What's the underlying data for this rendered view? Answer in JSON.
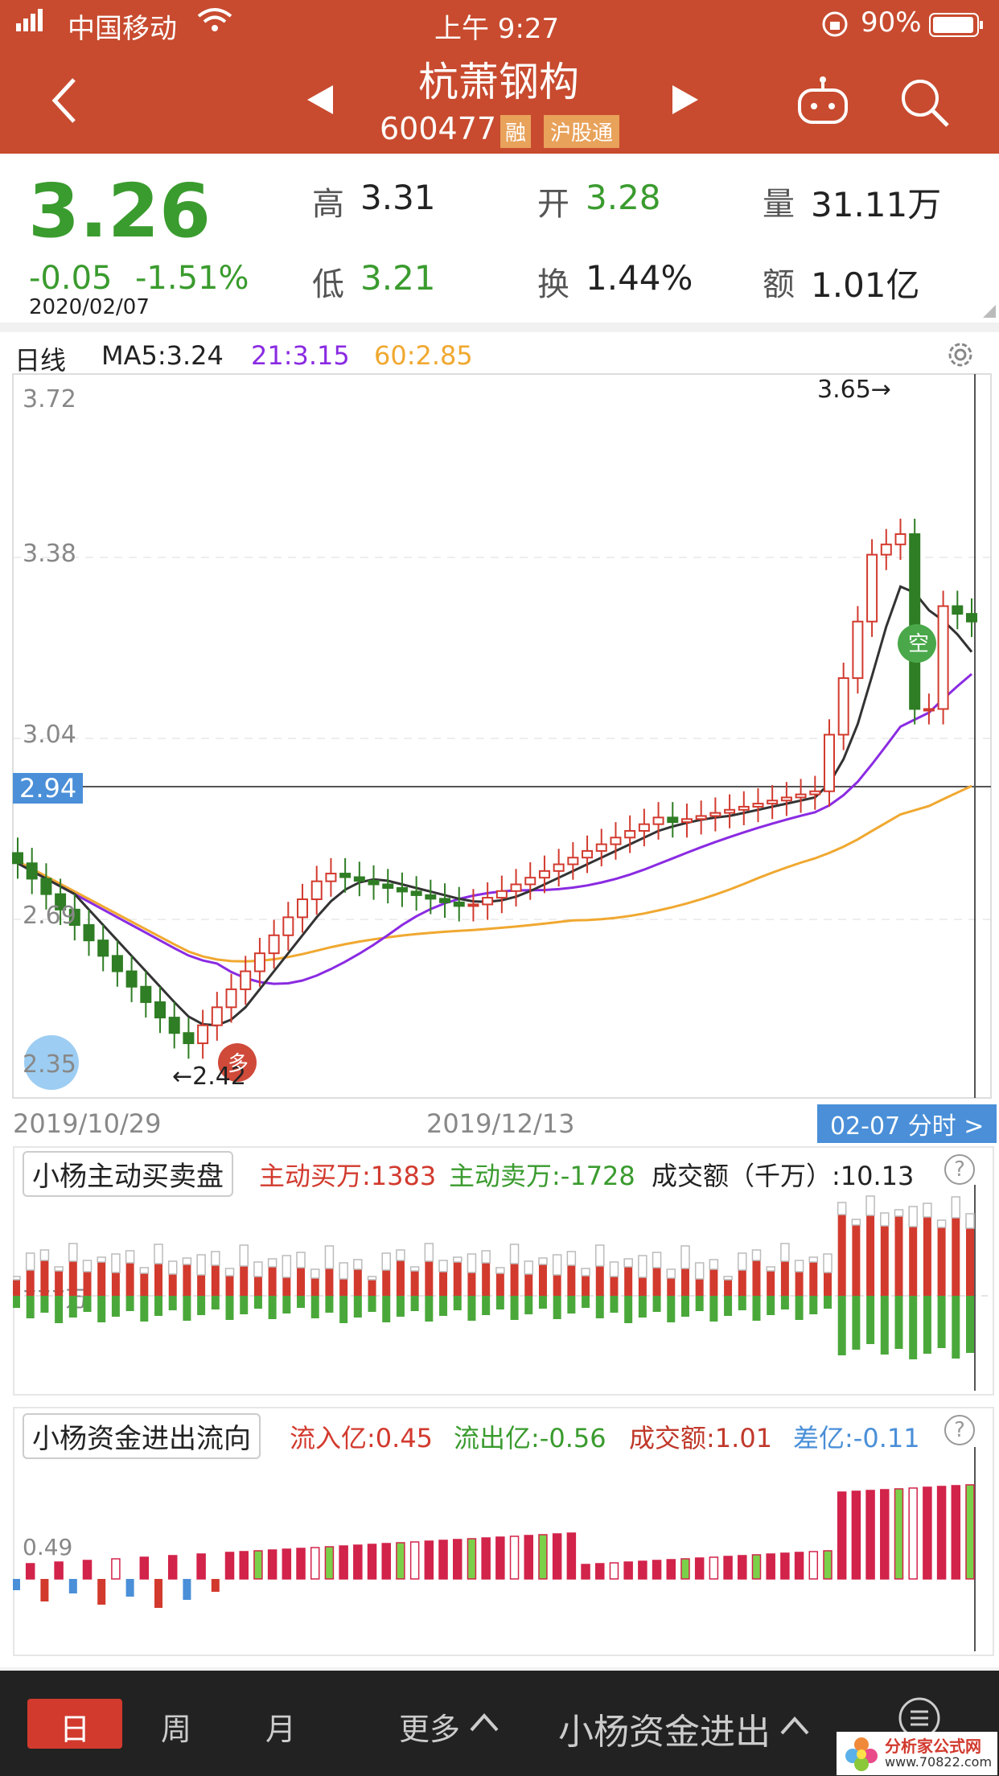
{
  "status": {
    "carrier": "中国移动",
    "time": "上午 9:27",
    "battery": "90%"
  },
  "header": {
    "name": "杭萧钢构",
    "code": "600477",
    "tag1": "融",
    "tag2": "沪股通"
  },
  "quote": {
    "price": "3.26",
    "change": "-0.05",
    "pct": "-1.51%",
    "date": "2020/02/07",
    "high_label": "高",
    "high": "3.31",
    "open_label": "开",
    "open": "3.28",
    "vol_label": "量",
    "vol": "31.11万",
    "low_label": "低",
    "low": "3.21",
    "turn_label": "换",
    "turn": "1.44%",
    "amt_label": "额",
    "amt": "1.01亿"
  },
  "kline": {
    "period": "日线",
    "ma5": "MA5:3.24",
    "ma21": "21:3.15",
    "ma60": "60:2.85",
    "y1": "3.72",
    "y2": "3.38",
    "y3": "3.04",
    "y4": "2.69",
    "y5": "2.35",
    "hl_price": "2.94",
    "max_label": "3.65→",
    "min_label": "←2.42",
    "date_left": "2019/10/29",
    "date_mid": "2019/12/13",
    "minute_btn": "02-07 分时 >",
    "buy_marker": "多",
    "sell_marker": "空"
  },
  "ind1": {
    "name": "小杨主动买卖盘",
    "buy": "主动买万:1383",
    "sell": "主动卖万:-1728",
    "amt": "成交额（千万）:10.13",
    "axis": "777万",
    "help": "?"
  },
  "ind2": {
    "name": "小杨资金进出流向",
    "in": "流入亿:0.45",
    "out": "流出亿:-0.56",
    "amt": "成交额:1.01",
    "diff": "差亿:-0.11",
    "axis": "0.49",
    "help": "?"
  },
  "bottom": {
    "day": "日",
    "week": "周",
    "month": "月",
    "more": "更多",
    "indicator": "小杨资金进出"
  },
  "watermark": {
    "line1": "分析家公式网",
    "line2": "www.70822.com"
  },
  "colors": {
    "header": "#c84b2f",
    "up": "#d23a2e",
    "down": "#2f7d24",
    "ma5": "#333333",
    "ma21": "#8a2be2",
    "ma60": "#f0a830"
  }
}
